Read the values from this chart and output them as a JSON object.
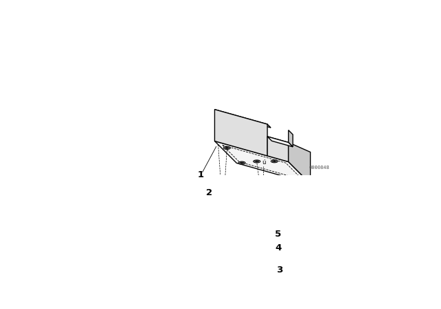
{
  "background_color": "#ffffff",
  "line_color": "#000000",
  "figure_width": 6.4,
  "figure_height": 4.48,
  "dpi": 100,
  "watermark": "0000848",
  "lw_main": 1.0,
  "lw_thin": 0.5,
  "face_light": "#f5f5f5",
  "face_mid": "#e0e0e0",
  "face_dark": "#c8c8c8"
}
